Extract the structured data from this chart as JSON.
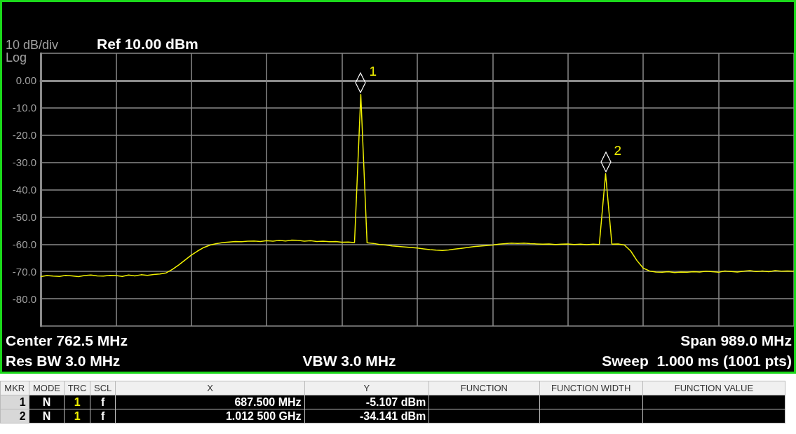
{
  "chart_data": {
    "type": "line",
    "title": "Ref 10.00 dBm",
    "annotations": [
      "10 dB/div",
      "Log",
      "Center 762.5 MHz",
      "Span 989.0 MHz",
      "Res BW 3.0 MHz",
      "VBW 3.0 MHz",
      "Sweep  1.000 ms (1001 pts)",
      "1",
      "2",
      "MKR",
      "MODE",
      "TRC",
      "SCL",
      "X",
      "Y",
      "FUNCTION",
      "FUNCTION WIDTH",
      "FUNCTION VALUE",
      "1",
      "N",
      "1",
      "f",
      "687.500 MHz",
      "-5.107 dBm",
      "2",
      "N",
      "1",
      "f",
      "1.012 500 GHz",
      "-34.141 dBm"
    ],
    "categories": [
      null,
      null,
      null,
      null,
      null,
      null,
      null,
      null,
      null,
      null,
      null,
      null,
      null,
      null,
      null,
      null,
      null,
      null,
      null,
      null,
      null,
      null,
      null,
      null,
      null,
      null,
      null,
      null,
      null,
      null,
      null,
      null,
      null,
      null,
      null,
      null,
      null,
      null,
      null,
      null,
      null,
      null,
      null,
      null,
      null,
      null,
      null,
      null,
      null,
      null,
      null,
      null,
      null,
      null,
      null,
      null,
      null,
      null,
      null,
      null,
      null,
      null,
      null,
      null,
      null,
      null,
      null,
      null,
      null,
      null,
      null,
      null,
      null,
      null,
      null,
      null,
      null,
      null,
      null,
      null,
      null,
      null,
      null,
      null,
      null,
      null,
      null,
      null,
      null,
      null,
      null,
      null,
      null,
      null,
      null,
      null,
      null,
      null,
      null,
      null,
      null,
      null,
      null,
      null,
      null,
      null,
      null,
      null,
      null,
      null,
      null,
      null,
      null,
      null,
      null,
      null,
      null,
      null,
      null,
      null,
      null
    ],
    "series": [
      {
        "color": "#f0f000",
        "values": [
          -71.9,
          -71.5,
          -71.7,
          -71.8,
          -71.4,
          -71.6,
          -71.9,
          -71.5,
          -71.3,
          -71.6,
          -71.7,
          -71.4,
          -71.5,
          -71.8,
          -71.3,
          -71.6,
          -71.2,
          -71.4,
          -71.1,
          -70.9,
          -70.5,
          -69.2,
          -67.6,
          -65.8,
          -64,
          -62.5,
          -61.2,
          -60.3,
          -59.8,
          -59.4,
          -59.2,
          -59,
          -59.1,
          -58.9,
          -58.8,
          -59,
          -58.7,
          -58.9,
          -58.6,
          -58.8,
          -58.5,
          -58.6,
          -58.9,
          -58.7,
          -59,
          -58.9,
          -59.1,
          -59,
          -59.3,
          -59.2,
          -59.4,
          -5.107,
          -59.5,
          -59.7,
          -60.1,
          -60.3,
          -60.6,
          -60.8,
          -61,
          -61.2,
          -61.4,
          -61.7,
          -62,
          -62.2,
          -62.3,
          -62.1,
          -61.8,
          -61.5,
          -61.2,
          -60.9,
          -60.7,
          -60.5,
          -60.3,
          -60,
          -59.8,
          -59.6,
          -59.7,
          -59.6,
          -59.8,
          -59.9,
          -60,
          -59.9,
          -60.1,
          -60,
          -59.9,
          -60.1,
          -60,
          -60.2,
          -60,
          -60.1,
          -34.141,
          -60,
          -59.9,
          -60.3,
          -62.5,
          -66,
          -68.8,
          -69.8,
          -70.2,
          -70.3,
          -70.1,
          -70.4,
          -70.2,
          -70.3,
          -70.1,
          -70.2,
          -69.9,
          -70.1,
          -70.3,
          -69.8,
          -70,
          -70.2,
          -69.9,
          -69.7,
          -70,
          -69.8,
          -70.1,
          -69.7,
          -69.9,
          -69.8,
          -69.9
        ]
      }
    ],
    "ylim": [
      -90,
      10
    ],
    "yticks": [
      {
        "value": 10,
        "label": null
      },
      {
        "value": 0,
        "label": "0.00"
      },
      {
        "value": -10,
        "label": "-10.0"
      },
      {
        "value": -20,
        "label": "-20.0"
      },
      {
        "value": -30,
        "label": "-30.0"
      },
      {
        "value": -40,
        "label": "-40.0"
      },
      {
        "value": -50,
        "label": "-50.0"
      },
      {
        "value": -60,
        "label": "-60.0"
      },
      {
        "value": -70,
        "label": "-70.0"
      },
      {
        "value": -80,
        "label": "-80.0"
      },
      {
        "value": -90,
        "label": null
      }
    ],
    "grid": true,
    "tick_labels": "y"
  }
}
